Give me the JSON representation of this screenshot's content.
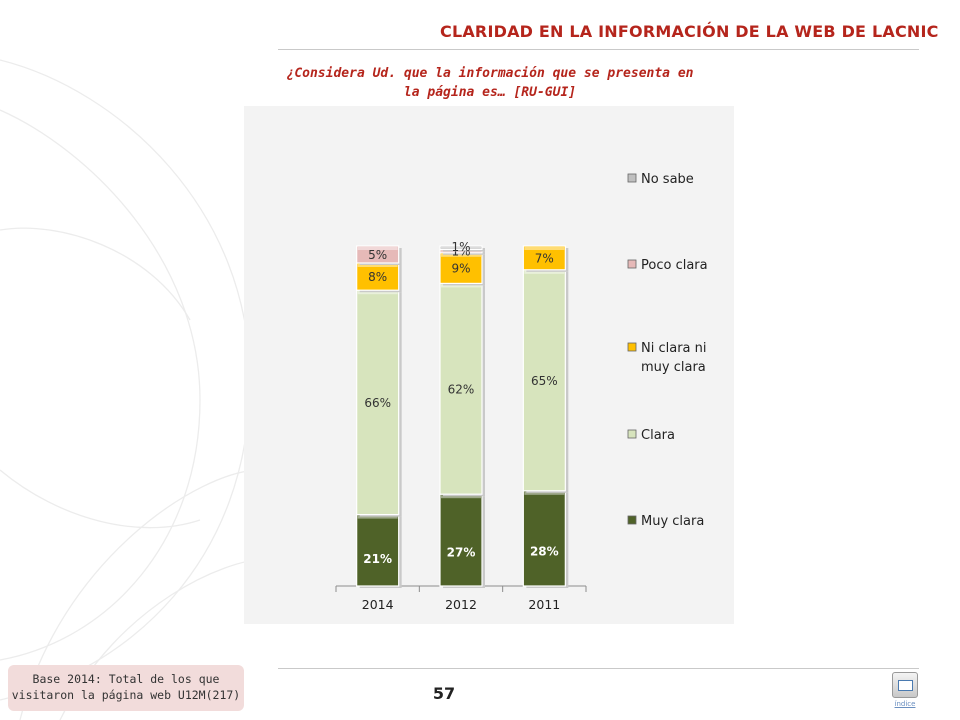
{
  "header": {
    "title": "CLARIDAD EN LA INFORMACIÓN DE LA WEB DE LACNIC",
    "question_line1": "¿Considera Ud. que la información que se presenta en",
    "question_line2": "la página es… [RU-GUI]"
  },
  "footer": {
    "base_line1": "Base 2014: Total de los que",
    "base_line2": "visitaron la página web U12M(217)",
    "page_number": "57",
    "index_label": "índice"
  },
  "chart_data": {
    "type": "bar",
    "stacked": true,
    "categories": [
      "2014",
      "2012",
      "2011"
    ],
    "series": [
      {
        "name": "Muy clara",
        "values": [
          21,
          27,
          28
        ],
        "labels": [
          "21%",
          "27%",
          "28%"
        ],
        "color": "#4f6228"
      },
      {
        "name": "Clara",
        "values": [
          66,
          62,
          65
        ],
        "labels": [
          "66%",
          "62%",
          "65%"
        ],
        "color": "#d7e4bd"
      },
      {
        "name": "Ni clara ni muy clara",
        "values": [
          8,
          9,
          7
        ],
        "labels": [
          "8%",
          "9%",
          "7%"
        ],
        "color": "#ffc000"
      },
      {
        "name": "Poco clara",
        "values": [
          5,
          1,
          0
        ],
        "labels": [
          "5%",
          "1%",
          ""
        ],
        "color": "#e6b9b8"
      },
      {
        "name": "No sabe",
        "values": [
          0,
          1,
          0
        ],
        "labels": [
          "",
          "1%",
          ""
        ],
        "color": "#bfbfbf"
      }
    ],
    "legend_order": [
      "No sabe",
      "Poco clara",
      "Ni clara ni muy clara",
      "Clara",
      "Muy clara"
    ],
    "legend_lines": {
      "No sabe": [
        "No sabe"
      ],
      "Poco clara": [
        "Poco clara"
      ],
      "Ni clara ni muy clara": [
        "Ni clara ni",
        "muy clara"
      ],
      "Clara": [
        "Clara"
      ],
      "Muy clara": [
        "Muy clara"
      ]
    },
    "legend_position": "right",
    "ylim": [
      0,
      100
    ],
    "grid": false
  }
}
